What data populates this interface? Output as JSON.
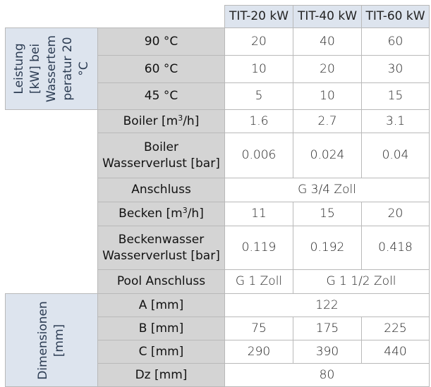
{
  "columns": [
    "TIT-20 kW",
    "TIT-40 kW",
    "TIT-60 kW"
  ],
  "groups": {
    "leistung": [
      "Leistung",
      "[kW] bei",
      "Wassertem",
      "peratur 20",
      "°C"
    ],
    "dimensionen": [
      "Dimensionen",
      "[mm]"
    ]
  },
  "rows": {
    "t90": {
      "label": "90 °C",
      "v": [
        "20",
        "40",
        "60"
      ]
    },
    "t60": {
      "label": "60 °C",
      "v": [
        "10",
        "20",
        "30"
      ]
    },
    "t45": {
      "label": "45 °C",
      "v": [
        "5",
        "10",
        "15"
      ]
    },
    "boiler": {
      "label_pre": "Boiler [m",
      "label_sup": "3",
      "label_post": "/h]",
      "v": [
        "1.6",
        "2.7",
        "3.1"
      ]
    },
    "boiler_loss": {
      "label_l1": "Boiler",
      "label_l2": "Wasserverlust [bar]",
      "v": [
        "0.006",
        "0.024",
        "0.04"
      ]
    },
    "anschluss": {
      "label": "Anschluss",
      "v": "G 3/4 Zoll"
    },
    "becken": {
      "label_pre": "Becken [m",
      "label_sup": "3",
      "label_post": "/h]",
      "v": [
        "11",
        "15",
        "20"
      ]
    },
    "becken_loss": {
      "label_l1": "Beckenwasser",
      "label_l2": "Wasserverlust [bar]",
      "v": [
        "0.119",
        "0.192",
        "0.418"
      ]
    },
    "pool": {
      "label": "Pool Anschluss",
      "v": [
        "G 1 Zoll",
        "G 1 1/2 Zoll"
      ]
    },
    "a": {
      "label": "A [mm]",
      "v": "122"
    },
    "b": {
      "label": "B [mm]",
      "v": [
        "75",
        "175",
        "225"
      ]
    },
    "c": {
      "label": "C [mm]",
      "v": [
        "290",
        "390",
        "440"
      ]
    },
    "dz": {
      "label": "Dz [mm]",
      "v": "80"
    }
  }
}
